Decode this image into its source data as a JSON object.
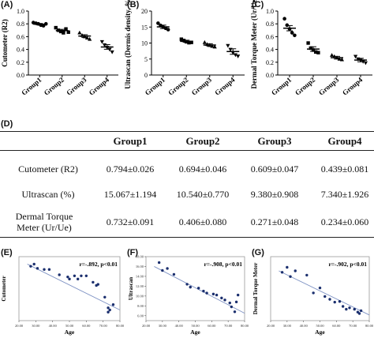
{
  "panels": {
    "A": "(A)",
    "B": "(B)",
    "C": "(C)",
    "D": "(D)",
    "E": "(E)",
    "F": "(F)",
    "G": "(G)"
  },
  "table": {
    "headers": [
      "Group1",
      "Group2",
      "Group3",
      "Group4"
    ],
    "rows": [
      {
        "label": "Cutometer (R2)",
        "values": [
          "0.794±0.026",
          "0.694±0.046",
          "0.609±0.047",
          "0.439±0.081"
        ]
      },
      {
        "label": "Ultrascan (%)",
        "values": [
          "15.067±1.194",
          "10.540±0.770",
          "9.380±0.908",
          "7.340±1.926"
        ]
      },
      {
        "label": "Dermal Torque Meter (Ur/Ue)",
        "values": [
          "0.732±0.091",
          "0.406±0.080",
          "0.271±0.048",
          "0.234±0.060"
        ]
      }
    ]
  },
  "chart_data": [
    {
      "type": "scatter",
      "panel": "A",
      "ylabel": "Cutometer (R2)",
      "categories": [
        "Group1",
        "Group2",
        "Group3",
        "Group4"
      ],
      "yticks": [
        "0.0",
        "0.2",
        "0.4",
        "0.6",
        "0.8",
        "1.0"
      ],
      "ylim": [
        0,
        1.0
      ],
      "means": [
        0.794,
        0.694,
        0.609,
        0.439
      ],
      "sem": [
        0.012,
        0.02,
        0.021,
        0.036
      ],
      "points": [
        [
          0.82,
          0.81,
          0.8,
          0.78,
          0.77,
          0.8
        ],
        [
          0.74,
          0.7,
          0.68,
          0.66,
          0.72,
          0.67
        ],
        [
          0.66,
          0.62,
          0.6,
          0.58,
          0.56
        ],
        [
          0.52,
          0.47,
          0.43,
          0.4,
          0.36
        ]
      ],
      "markers": [
        "circle",
        "square",
        "triangle",
        "triangle-down"
      ]
    },
    {
      "type": "scatter",
      "panel": "B",
      "ylabel": "Ultrascan (Dermis density, %)",
      "categories": [
        "Group1",
        "Group2",
        "Group3",
        "Group4"
      ],
      "yticks": [
        "0",
        "5",
        "10",
        "15",
        "20"
      ],
      "ylim": [
        0,
        20
      ],
      "means": [
        15.067,
        10.54,
        9.38,
        7.34
      ],
      "sem": [
        0.53,
        0.34,
        0.41,
        0.86
      ],
      "points": [
        [
          16.2,
          15.5,
          15.0,
          14.6,
          14.2
        ],
        [
          11.2,
          10.8,
          10.4,
          10.1,
          10.2
        ],
        [
          10.2,
          9.6,
          9.3,
          9.0,
          8.8
        ],
        [
          9.2,
          8.0,
          7.0,
          6.3,
          5.9
        ]
      ],
      "markers": [
        "circle",
        "square",
        "triangle",
        "triangle-down"
      ]
    },
    {
      "type": "scatter",
      "panel": "C",
      "ylabel": "Dermal Torque Meter (Ur/Ue)",
      "categories": [
        "Group1",
        "Group2",
        "Group3",
        "Group4"
      ],
      "yticks": [
        "0.0",
        "0.2",
        "0.4",
        "0.6",
        "0.8",
        "1.0"
      ],
      "ylim": [
        0,
        1.0
      ],
      "means": [
        0.732,
        0.406,
        0.271,
        0.234
      ],
      "sem": [
        0.041,
        0.036,
        0.021,
        0.027
      ],
      "points": [
        [
          0.88,
          0.78,
          0.72,
          0.66,
          0.62
        ],
        [
          0.5,
          0.42,
          0.39,
          0.36,
          0.35
        ],
        [
          0.31,
          0.29,
          0.27,
          0.25,
          0.24
        ],
        [
          0.29,
          0.25,
          0.23,
          0.21,
          0.19
        ]
      ],
      "markers": [
        "circle",
        "square",
        "triangle",
        "triangle-down"
      ]
    },
    {
      "type": "scatter",
      "panel": "E",
      "xlabel": "Age",
      "ylabel": "Cutometer",
      "annotation": "r=-.892, p<0.01",
      "xticks": [
        "20.00",
        "30.00",
        "40.00",
        "50.00",
        "60.00",
        "70.00",
        "80.00"
      ],
      "xlim": [
        20,
        80
      ],
      "ylim": [
        0.3,
        0.9
      ],
      "fit": [
        [
          25,
          0.83
        ],
        [
          80,
          0.4
        ]
      ],
      "points": [
        [
          27,
          0.81
        ],
        [
          29,
          0.83
        ],
        [
          31,
          0.79
        ],
        [
          35,
          0.78
        ],
        [
          38,
          0.78
        ],
        [
          44,
          0.73
        ],
        [
          49,
          0.71
        ],
        [
          50,
          0.69
        ],
        [
          53,
          0.72
        ],
        [
          55,
          0.69
        ],
        [
          57,
          0.72
        ],
        [
          60,
          0.72
        ],
        [
          64,
          0.66
        ],
        [
          66,
          0.63
        ],
        [
          67,
          0.64
        ],
        [
          71,
          0.52
        ],
        [
          73,
          0.42
        ],
        [
          73,
          0.38
        ],
        [
          74,
          0.4
        ],
        [
          76,
          0.45
        ]
      ]
    },
    {
      "type": "scatter",
      "panel": "F",
      "xlabel": "Age",
      "ylabel": "Ultrascan",
      "annotation": "r=-.908, p<0.01",
      "yticks": [
        "6.00",
        "8.00",
        "10.00",
        "12.00",
        "14.00",
        "16.00",
        "18.00"
      ],
      "xticks": [
        "20.00",
        "30.00",
        "40.00",
        "50.00",
        "60.00",
        "70.00",
        "80.00"
      ],
      "xlim": [
        20,
        80
      ],
      "ylim": [
        5,
        18
      ],
      "fit": [
        [
          25,
          16.0
        ],
        [
          80,
          6.5
        ]
      ],
      "points": [
        [
          28,
          16.8
        ],
        [
          30,
          15.2
        ],
        [
          33,
          15.6
        ],
        [
          37,
          14.4
        ],
        [
          45,
          12.4
        ],
        [
          47,
          11.8
        ],
        [
          52,
          11.6
        ],
        [
          55,
          11.0
        ],
        [
          57,
          10.6
        ],
        [
          61,
          10.4
        ],
        [
          63,
          10.2
        ],
        [
          66,
          9.6
        ],
        [
          68,
          9.2
        ],
        [
          71,
          8.6
        ],
        [
          72,
          7.8
        ],
        [
          74,
          6.8
        ],
        [
          75,
          8.8
        ],
        [
          76,
          10.2
        ]
      ]
    },
    {
      "type": "scatter",
      "panel": "G",
      "xlabel": "Age",
      "ylabel": "Dermal Torque Meter",
      "annotation": "r=-.902, p<0.01",
      "xticks": [
        "20.00",
        "30.00",
        "40.00",
        "50.00",
        "60.00",
        "70.00",
        "80.00"
      ],
      "xlim": [
        20,
        80
      ],
      "ylim": [
        0.1,
        1.0
      ],
      "fit": [
        [
          25,
          0.8
        ],
        [
          80,
          0.18
        ]
      ],
      "points": [
        [
          27,
          0.78
        ],
        [
          30,
          0.85
        ],
        [
          32,
          0.72
        ],
        [
          35,
          0.8
        ],
        [
          42,
          0.74
        ],
        [
          46,
          0.49
        ],
        [
          50,
          0.56
        ],
        [
          53,
          0.44
        ],
        [
          56,
          0.4
        ],
        [
          59,
          0.36
        ],
        [
          62,
          0.37
        ],
        [
          64,
          0.3
        ],
        [
          66,
          0.26
        ],
        [
          68,
          0.28
        ],
        [
          71,
          0.26
        ],
        [
          73,
          0.22
        ],
        [
          74,
          0.2
        ],
        [
          75,
          0.24
        ]
      ]
    }
  ]
}
